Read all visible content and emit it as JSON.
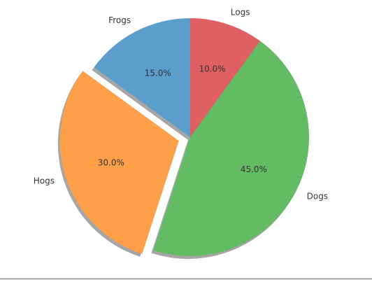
{
  "chart_data": {
    "type": "pie",
    "categories": [
      "Frogs",
      "Hogs",
      "Dogs",
      "Logs"
    ],
    "values": [
      15,
      30,
      45,
      10
    ],
    "value_labels": [
      "15.0%",
      "30.0%",
      "45.0%",
      "10.0%"
    ],
    "colors": [
      "#5b9ecb",
      "#fea04a",
      "#63bb63",
      "#e05f62"
    ],
    "explode": [
      0,
      0.1,
      0,
      0
    ],
    "start_angle": 90,
    "shadow": true
  }
}
